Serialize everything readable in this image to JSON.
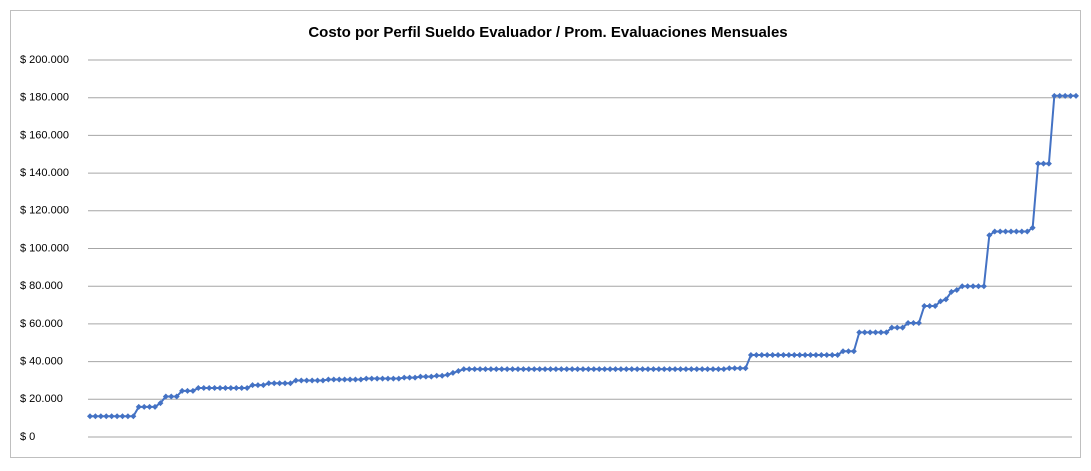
{
  "chart_data": {
    "type": "line",
    "title": "Costo por Perfil Sueldo Evaluador / Prom. Evaluaciones Mensuales",
    "series": [
      {
        "color": "#4472c4",
        "values": [
          11000,
          11000,
          11000,
          11000,
          11000,
          11000,
          11000,
          11000,
          11000,
          16000,
          16000,
          16000,
          16000,
          18000,
          21500,
          21500,
          21500,
          24500,
          24500,
          24500,
          26000,
          26000,
          26000,
          26000,
          26000,
          26000,
          26000,
          26000,
          26000,
          26000,
          27500,
          27500,
          27500,
          28500,
          28500,
          28500,
          28500,
          28500,
          30000,
          30000,
          30000,
          30000,
          30000,
          30000,
          30500,
          30500,
          30500,
          30500,
          30500,
          30500,
          30500,
          31000,
          31000,
          31000,
          31000,
          31000,
          31000,
          31000,
          31500,
          31500,
          31500,
          32000,
          32000,
          32000,
          32500,
          32500,
          33000,
          34000,
          35000,
          36000,
          36000,
          36000,
          36000,
          36000,
          36000,
          36000,
          36000,
          36000,
          36000,
          36000,
          36000,
          36000,
          36000,
          36000,
          36000,
          36000,
          36000,
          36000,
          36000,
          36000,
          36000,
          36000,
          36000,
          36000,
          36000,
          36000,
          36000,
          36000,
          36000,
          36000,
          36000,
          36000,
          36000,
          36000,
          36000,
          36000,
          36000,
          36000,
          36000,
          36000,
          36000,
          36000,
          36000,
          36000,
          36000,
          36000,
          36000,
          36000,
          36500,
          36500,
          36500,
          36500,
          43500,
          43500,
          43500,
          43500,
          43500,
          43500,
          43500,
          43500,
          43500,
          43500,
          43500,
          43500,
          43500,
          43500,
          43500,
          43500,
          43500,
          45500,
          45500,
          45500,
          55500,
          55500,
          55500,
          55500,
          55500,
          55500,
          58000,
          58000,
          58000,
          60500,
          60500,
          60500,
          69500,
          69500,
          69500,
          72000,
          73000,
          77000,
          78000,
          80000,
          80000,
          80000,
          80000,
          80000,
          107000,
          109000,
          109000,
          109000,
          109000,
          109000,
          109000,
          109000,
          111000,
          145000,
          145000,
          145000,
          181000,
          181000,
          181000,
          181000,
          181000
        ]
      }
    ],
    "ylim": [
      0,
      200000
    ],
    "yticks": [
      {
        "value": 0,
        "label": "$ 0"
      },
      {
        "value": 20000,
        "label": "$ 20.000"
      },
      {
        "value": 40000,
        "label": "$ 40.000"
      },
      {
        "value": 60000,
        "label": "$ 60.000"
      },
      {
        "value": 80000,
        "label": "$ 80.000"
      },
      {
        "value": 100000,
        "label": "$ 100.000"
      },
      {
        "value": 120000,
        "label": "$ 120.000"
      },
      {
        "value": 140000,
        "label": "$ 140.000"
      },
      {
        "value": 160000,
        "label": "$ 160.000"
      },
      {
        "value": 180000,
        "label": "$ 180.000"
      },
      {
        "value": 200000,
        "label": "$ 200.000"
      }
    ],
    "grid": true
  }
}
